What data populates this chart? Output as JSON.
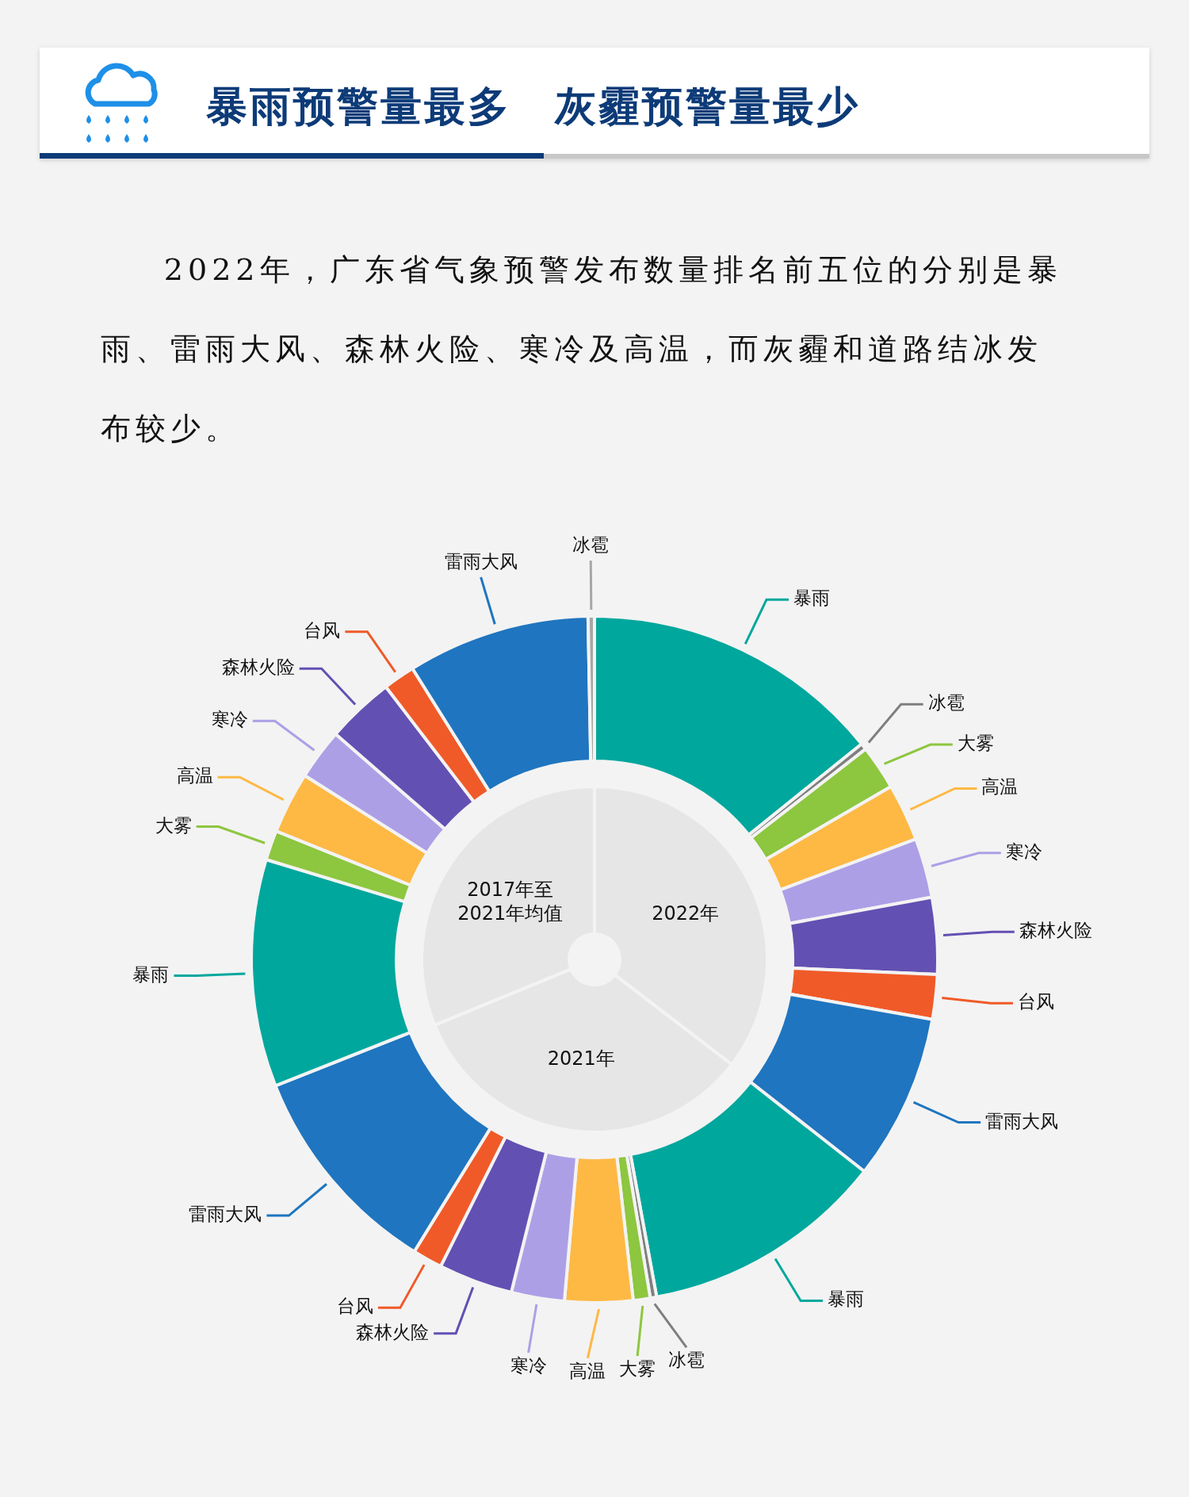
{
  "chart_data": [
    {
      "type": "donut",
      "title": "暴雨预警量最多　灰霾预警量最少",
      "subtitle": "2022年，广东省气象预警发布数量排名前五位的分别是暴雨、雷雨大风、森林火险、寒冷及高温，而灰霾和道路结冰发布较少。",
      "categories": [
        "暴雨",
        "冰雹",
        "大雾",
        "高温",
        "寒冷",
        "森林火险",
        "台风",
        "雷雨大风",
        "暴雨",
        "冰雹",
        "大雾",
        "高温",
        "寒冷",
        "森林火险",
        "台风",
        "雷雨大风",
        "暴雨",
        "大雾",
        "高温",
        "寒冷",
        "森林火险",
        "台风",
        "雷雨大风",
        "冰雹"
      ],
      "values": [
        14.2,
        0.3,
        2.1,
        2.7,
        2.8,
        3.6,
        2.1,
        7.8,
        11.5,
        0.3,
        0.8,
        3.2,
        2.5,
        3.5,
        1.4,
        10.2,
        10.7,
        1.4,
        2.9,
        2.4,
        3.2,
        1.5,
        8.6,
        0.3
      ],
      "colors": [
        "#00a79d",
        "#7f7f7f",
        "#8dc63f",
        "#fdb944",
        "#ad9fe6",
        "#6350b3",
        "#f05a28",
        "#1f75bf",
        "#00a79d",
        "#7f7f7f",
        "#8dc63f",
        "#fdb944",
        "#ad9fe6",
        "#6350b3",
        "#f05a28",
        "#1f75bf",
        "#00a79d",
        "#8dc63f",
        "#fdb944",
        "#ad9fe6",
        "#6350b3",
        "#f05a28",
        "#1f75bf",
        "#a6a6a6"
      ],
      "legend": false
    },
    {
      "type": "donut",
      "categories": [
        "2022年",
        "2021年",
        "2017年至2021年均值"
      ],
      "values": [
        35.4,
        33.4,
        31.2
      ],
      "colors": [
        "#e6e6e6",
        "#e6e6e6",
        "#e6e6e6"
      ],
      "legend": false
    }
  ]
}
